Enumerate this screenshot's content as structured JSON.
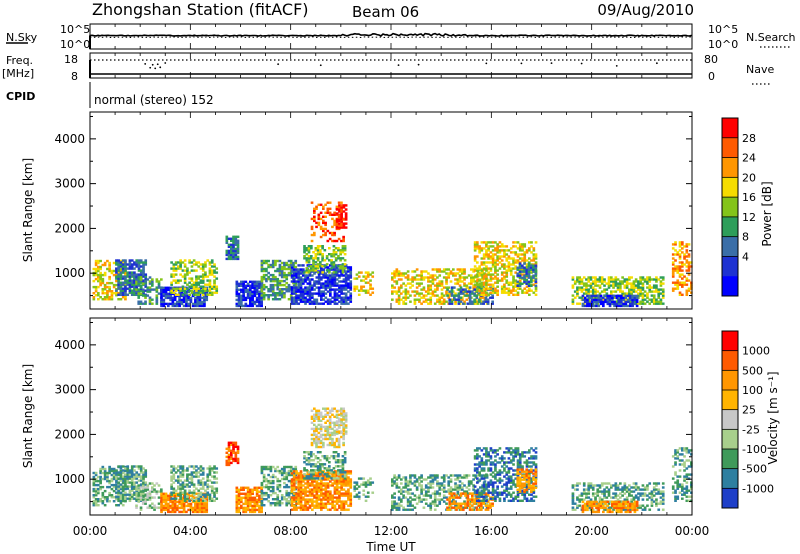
{
  "header": {
    "station": "Zhongshan Station (fitACF)",
    "beam": "Beam 06",
    "date": "09/Aug/2010"
  },
  "top_panels": {
    "nsky_label": "N.Sky",
    "nsky_ticks": [
      "10^5",
      "10^0"
    ],
    "nsearch_label": "N.Search",
    "nsearch_ticks": [
      "10^5",
      "10^0"
    ],
    "freq_label": "Freq.",
    "freq_unit": "[MHz]",
    "freq_ticks": [
      "18",
      "8"
    ],
    "nave_label": "Nave",
    "nave_ticks": [
      "80",
      "0"
    ],
    "cpid_label": "CPID",
    "cpid_text": "normal (stereo) 152"
  },
  "chart_data": [
    {
      "type": "heatmap",
      "name": "power-panel",
      "ylabel": "Slant Range [km]",
      "ylim": [
        200,
        4600
      ],
      "yticks": [
        "1000",
        "2000",
        "3000",
        "4000"
      ],
      "xlim": [
        0,
        24
      ],
      "colorbar_label": "Power [dB]",
      "colorbar_ticks": [
        "28",
        "24",
        "20",
        "16",
        "12",
        "8",
        "4"
      ],
      "colorbar_colors": [
        "#ff0000",
        "#ff5a00",
        "#ff9600",
        "#f5dc00",
        "#84c41a",
        "#2e9e5a",
        "#3a6ea8",
        "#1e32d2",
        "#0000ff"
      ],
      "regions": [
        {
          "t": [
            0.1,
            1.4
          ],
          "r": [
            400,
            1300
          ],
          "level": 3,
          "dens": 0.55
        },
        {
          "t": [
            1.0,
            2.2
          ],
          "r": [
            500,
            1300
          ],
          "level": 6,
          "dens": 0.75
        },
        {
          "t": [
            1.8,
            2.8
          ],
          "r": [
            300,
            900
          ],
          "level": 5,
          "dens": 0.5
        },
        {
          "t": [
            2.8,
            4.6
          ],
          "r": [
            250,
            700
          ],
          "level": 7,
          "dens": 0.8
        },
        {
          "t": [
            3.2,
            5.0
          ],
          "r": [
            500,
            1300
          ],
          "level": 4,
          "dens": 0.55
        },
        {
          "t": [
            5.4,
            5.9
          ],
          "r": [
            1300,
            1800
          ],
          "level": 6,
          "dens": 0.8
        },
        {
          "t": [
            5.8,
            6.8
          ],
          "r": [
            250,
            800
          ],
          "level": 7,
          "dens": 0.85
        },
        {
          "t": [
            6.8,
            8.2
          ],
          "r": [
            400,
            1300
          ],
          "level": 5,
          "dens": 0.6
        },
        {
          "t": [
            8.0,
            10.4
          ],
          "r": [
            300,
            1200
          ],
          "level": 7,
          "dens": 0.75
        },
        {
          "t": [
            8.5,
            10.2
          ],
          "r": [
            1000,
            1600
          ],
          "level": 4,
          "dens": 0.5
        },
        {
          "t": [
            8.8,
            10.1
          ],
          "r": [
            1700,
            2600
          ],
          "level": 1,
          "dens": 0.35
        },
        {
          "t": [
            9.8,
            10.2
          ],
          "r": [
            2000,
            2500
          ],
          "level": 0,
          "dens": 0.55
        },
        {
          "t": [
            10.5,
            11.3
          ],
          "r": [
            500,
            1000
          ],
          "level": 3,
          "dens": 0.45
        },
        {
          "t": [
            12.0,
            15.8
          ],
          "r": [
            300,
            1100
          ],
          "level": 3,
          "dens": 0.5
        },
        {
          "t": [
            14.2,
            16.0
          ],
          "r": [
            300,
            700
          ],
          "level": 6,
          "dens": 0.5
        },
        {
          "t": [
            15.3,
            17.8
          ],
          "r": [
            500,
            1700
          ],
          "level": 3,
          "dens": 0.55
        },
        {
          "t": [
            17.0,
            17.8
          ],
          "r": [
            700,
            1200
          ],
          "level": 6,
          "dens": 0.6
        },
        {
          "t": [
            19.2,
            22.8
          ],
          "r": [
            300,
            900
          ],
          "level": 4,
          "dens": 0.6
        },
        {
          "t": [
            19.6,
            21.8
          ],
          "r": [
            250,
            500
          ],
          "level": 7,
          "dens": 0.8
        },
        {
          "t": [
            23.2,
            24.0
          ],
          "r": [
            500,
            1700
          ],
          "level": 2,
          "dens": 0.45
        }
      ]
    },
    {
      "type": "heatmap",
      "name": "velocity-panel",
      "ylabel": "Slant Range [km]",
      "ylim": [
        200,
        4600
      ],
      "yticks": [
        "1000",
        "2000",
        "3000",
        "4000"
      ],
      "xlim": [
        0,
        24
      ],
      "xticks": [
        "00:00",
        "04:00",
        "08:00",
        "12:00",
        "16:00",
        "20:00",
        "00:00"
      ],
      "xlabel": "Time UT",
      "colorbar_label": "Velocity [m s⁻¹]",
      "colorbar_ticks": [
        "1000",
        "500",
        "100",
        "25",
        "-25",
        "-100",
        "-500",
        "-1000"
      ],
      "colorbar_colors": [
        "#ff0000",
        "#ff5a00",
        "#ff9600",
        "#ffb400",
        "#c8c8c8",
        "#a8cf8c",
        "#3f9a5a",
        "#2e7fa0",
        "#1e3fc8"
      ],
      "regions": [
        {
          "t": [
            0.1,
            1.4
          ],
          "r": [
            400,
            1300
          ],
          "level": 6,
          "dens": 0.55
        },
        {
          "t": [
            1.0,
            2.2
          ],
          "r": [
            500,
            1300
          ],
          "level": 6,
          "dens": 0.65
        },
        {
          "t": [
            1.8,
            2.8
          ],
          "r": [
            300,
            900
          ],
          "level": 5,
          "dens": 0.45
        },
        {
          "t": [
            2.8,
            4.6
          ],
          "r": [
            250,
            700
          ],
          "level": 2,
          "dens": 0.85
        },
        {
          "t": [
            3.2,
            5.0
          ],
          "r": [
            500,
            1300
          ],
          "level": 6,
          "dens": 0.5
        },
        {
          "t": [
            5.4,
            5.9
          ],
          "r": [
            1300,
            1800
          ],
          "level": 1,
          "dens": 0.8
        },
        {
          "t": [
            5.8,
            6.8
          ],
          "r": [
            250,
            800
          ],
          "level": 2,
          "dens": 0.85
        },
        {
          "t": [
            6.8,
            8.2
          ],
          "r": [
            400,
            1300
          ],
          "level": 6,
          "dens": 0.55
        },
        {
          "t": [
            8.0,
            10.4
          ],
          "r": [
            300,
            1200
          ],
          "level": 2,
          "dens": 0.75
        },
        {
          "t": [
            8.5,
            10.2
          ],
          "r": [
            1000,
            1600
          ],
          "level": 6,
          "dens": 0.5
        },
        {
          "t": [
            8.8,
            10.1
          ],
          "r": [
            1700,
            2600
          ],
          "level": 4,
          "dens": 0.55
        },
        {
          "t": [
            9.8,
            10.2
          ],
          "r": [
            2000,
            2500
          ],
          "level": 4,
          "dens": 0.6
        },
        {
          "t": [
            10.5,
            11.3
          ],
          "r": [
            500,
            1000
          ],
          "level": 6,
          "dens": 0.45
        },
        {
          "t": [
            12.0,
            15.8
          ],
          "r": [
            300,
            1100
          ],
          "level": 6,
          "dens": 0.5
        },
        {
          "t": [
            14.2,
            16.0
          ],
          "r": [
            300,
            700
          ],
          "level": 2,
          "dens": 0.6
        },
        {
          "t": [
            15.3,
            17.8
          ],
          "r": [
            500,
            1700
          ],
          "level": 7,
          "dens": 0.5
        },
        {
          "t": [
            17.0,
            17.8
          ],
          "r": [
            700,
            1200
          ],
          "level": 2,
          "dens": 0.6
        },
        {
          "t": [
            19.2,
            22.8
          ],
          "r": [
            300,
            900
          ],
          "level": 6,
          "dens": 0.5
        },
        {
          "t": [
            19.6,
            21.8
          ],
          "r": [
            250,
            500
          ],
          "level": 2,
          "dens": 0.65
        },
        {
          "t": [
            23.2,
            24.0
          ],
          "r": [
            500,
            1700
          ],
          "level": 6,
          "dens": 0.45
        }
      ]
    }
  ],
  "colors": {
    "frame": "#000000",
    "background": "#ffffff"
  }
}
